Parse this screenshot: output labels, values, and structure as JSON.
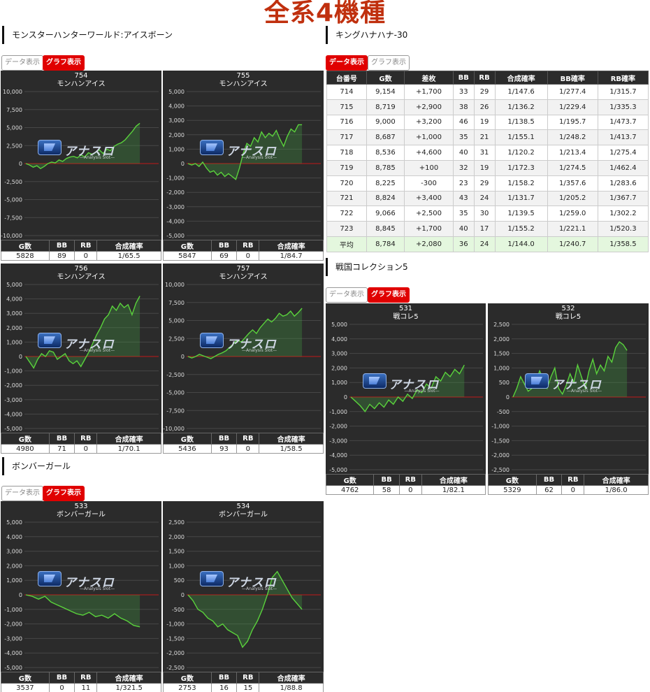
{
  "page_title": "全系4機種",
  "buttons": {
    "data": "データ表示",
    "graph": "グラフ表示"
  },
  "labels": {
    "g": "G数",
    "bb": "BB",
    "rb": "RB",
    "combined": "合成確率"
  },
  "logo": {
    "text": "アナスロ",
    "sub": "—Analysis Slot—"
  },
  "sections": [
    {
      "title": "モンスターハンターワールド:アイスボーン",
      "machines": [
        {
          "number": "754",
          "name": "モンハンアイス",
          "g": "5828",
          "bb": "89",
          "rb": "0",
          "rate": "1/65.5",
          "ticks": [
            "10,000",
            "7,500",
            "5,000",
            "2,500",
            "0",
            "-2,500",
            "-5,000",
            "-7,500",
            "-10,000"
          ],
          "chart_data": {
            "type": "line",
            "ylim": [
              -10000,
              10000
            ],
            "y": [
              0,
              -200,
              -500,
              -300,
              -700,
              -400,
              0,
              200,
              100,
              500,
              300,
              700,
              900,
              1000,
              800,
              1200,
              900,
              1500,
              1300,
              1600,
              1900,
              1400,
              2000,
              1800,
              2400,
              2700,
              2900,
              3300,
              3900,
              4500,
              5200,
              5600
            ]
          }
        },
        {
          "number": "755",
          "name": "モンハンアイス",
          "g": "5847",
          "bb": "69",
          "rb": "0",
          "rate": "1/84.7",
          "ticks": [
            "5,000",
            "4,000",
            "3,000",
            "2,000",
            "1,000",
            "0",
            "-1,000",
            "-2,000",
            "-3,000",
            "-4,000",
            "-5,000"
          ],
          "chart_data": {
            "type": "line",
            "ylim": [
              -5000,
              5000
            ],
            "y": [
              0,
              -100,
              0,
              -200,
              100,
              -300,
              -600,
              -500,
              -800,
              -600,
              -900,
              -700,
              -900,
              -1100,
              -300,
              700,
              1400,
              1200,
              1800,
              1500,
              2200,
              1800,
              2100,
              1900,
              2300,
              1700,
              1200,
              1900,
              2400,
              2200,
              2700,
              2700
            ]
          }
        },
        {
          "number": "756",
          "name": "モンハンアイス",
          "g": "4980",
          "bb": "71",
          "rb": "0",
          "rate": "1/70.1",
          "ticks": [
            "5,000",
            "4,000",
            "3,000",
            "2,000",
            "1,000",
            "0",
            "-1,000",
            "-2,000",
            "-3,000",
            "-4,000",
            "-5,000"
          ],
          "chart_data": {
            "type": "line",
            "ylim": [
              -5000,
              5000
            ],
            "y": [
              0,
              -400,
              -800,
              -200,
              200,
              0,
              400,
              300,
              -200,
              0,
              200,
              -300,
              -500,
              -300,
              -700,
              -200,
              300,
              900,
              1500,
              2000,
              2600,
              2900,
              3500,
              3200,
              3700,
              3400,
              3600,
              2900,
              3700,
              4200
            ]
          }
        },
        {
          "number": "757",
          "name": "モンハンアイス",
          "g": "5436",
          "bb": "93",
          "rb": "0",
          "rate": "1/58.5",
          "ticks": [
            "10,000",
            "7,500",
            "5,000",
            "2,500",
            "0",
            "-2,500",
            "-5,000",
            "-7,500",
            "-10,000"
          ],
          "chart_data": {
            "type": "line",
            "ylim": [
              -10000,
              10000
            ],
            "y": [
              0,
              -200,
              0,
              300,
              100,
              -100,
              -300,
              0,
              300,
              500,
              800,
              1300,
              1800,
              2300,
              2000,
              2600,
              3200,
              3700,
              3200,
              4000,
              4600,
              5200,
              4800,
              5300,
              6000,
              5600,
              5800,
              6300,
              5600,
              6100,
              6700
            ]
          }
        }
      ]
    },
    {
      "title": "キングハナハナ-30",
      "headers": [
        "台番号",
        "G数",
        "差枚",
        "BB",
        "RB",
        "合成確率",
        "BB確率",
        "RB確率"
      ],
      "rows": [
        [
          "714",
          "9,154",
          "+1,700",
          "33",
          "29",
          "1/147.6",
          "1/277.4",
          "1/315.7"
        ],
        [
          "715",
          "8,719",
          "+2,900",
          "38",
          "26",
          "1/136.2",
          "1/229.4",
          "1/335.3"
        ],
        [
          "716",
          "9,000",
          "+3,200",
          "46",
          "19",
          "1/138.5",
          "1/195.7",
          "1/473.7"
        ],
        [
          "717",
          "8,687",
          "+1,000",
          "35",
          "21",
          "1/155.1",
          "1/248.2",
          "1/413.7"
        ],
        [
          "718",
          "8,536",
          "+4,600",
          "40",
          "31",
          "1/120.2",
          "1/213.4",
          "1/275.4"
        ],
        [
          "719",
          "8,785",
          "+100",
          "32",
          "19",
          "1/172.3",
          "1/274.5",
          "1/462.4"
        ],
        [
          "720",
          "8,225",
          "-300",
          "23",
          "29",
          "1/158.2",
          "1/357.6",
          "1/283.6"
        ],
        [
          "721",
          "8,824",
          "+3,400",
          "43",
          "24",
          "1/131.7",
          "1/205.2",
          "1/367.7"
        ],
        [
          "722",
          "9,066",
          "+2,500",
          "35",
          "30",
          "1/139.5",
          "1/259.0",
          "1/302.2"
        ],
        [
          "723",
          "8,845",
          "+1,700",
          "40",
          "17",
          "1/155.2",
          "1/221.1",
          "1/520.3"
        ]
      ],
      "average": [
        "平均",
        "8,784",
        "+2,080",
        "36",
        "24",
        "1/144.0",
        "1/240.7",
        "1/358.5"
      ]
    },
    {
      "title": "戦国コレクション5",
      "machines": [
        {
          "number": "531",
          "name": "戦コレ5",
          "g": "4762",
          "bb": "58",
          "rb": "0",
          "rate": "1/82.1",
          "ticks": [
            "5,000",
            "4,000",
            "3,000",
            "2,000",
            "1,000",
            "0",
            "-1,000",
            "-2,000",
            "-3,000",
            "-4,000",
            "-5,000"
          ],
          "chart_data": {
            "type": "line",
            "ylim": [
              -5000,
              5000
            ],
            "y": [
              0,
              -300,
              -600,
              -1000,
              -500,
              -800,
              -400,
              -700,
              -200,
              -500,
              0,
              -300,
              200,
              -100,
              500,
              300,
              900,
              600,
              1400,
              1100,
              1700,
              1400,
              1900,
              1600,
              2200
            ]
          }
        },
        {
          "number": "532",
          "name": "戦コレ5",
          "g": "5329",
          "bb": "62",
          "rb": "0",
          "rate": "1/86.0",
          "ticks": [
            "2,500",
            "2,000",
            "1,500",
            "1,000",
            "500",
            "0",
            "-500",
            "-1,000",
            "-1,500",
            "-2,000",
            "-2,500"
          ],
          "chart_data": {
            "type": "line",
            "ylim": [
              -2500,
              2500
            ],
            "y": [
              0,
              300,
              700,
              450,
              200,
              300,
              500,
              900,
              600,
              300,
              700,
              1000,
              300,
              100,
              400,
              800,
              500,
              1100,
              700,
              300,
              900,
              1300,
              800,
              1100,
              900,
              1400,
              1200,
              1700,
              1900,
              1800,
              1600
            ]
          }
        }
      ]
    },
    {
      "title": "ボンバーガール",
      "machines": [
        {
          "number": "533",
          "name": "ボンバーガール",
          "g": "3537",
          "bb": "0",
          "rb": "11",
          "rate": "1/321.5",
          "ticks": [
            "5,000",
            "4,000",
            "3,000",
            "2,000",
            "1,000",
            "0",
            "-1,000",
            "-2,000",
            "-3,000",
            "-4,000",
            "-5,000"
          ],
          "chart_data": {
            "type": "line",
            "ylim": [
              -5000,
              5000
            ],
            "y": [
              0,
              -100,
              -300,
              -100,
              -500,
              -700,
              -900,
              -1100,
              -1300,
              -1400,
              -1200,
              -1500,
              -1400,
              -1600,
              -1300,
              -1600,
              -1800,
              -2100,
              -2200
            ]
          }
        },
        {
          "number": "534",
          "name": "ボンバーガール",
          "g": "2753",
          "bb": "16",
          "rb": "15",
          "rate": "1/88.8",
          "ticks": [
            "2,500",
            "2,000",
            "1,500",
            "1,000",
            "500",
            "0",
            "-500",
            "-1,000",
            "-1,500",
            "-2,000",
            "-2,500"
          ],
          "chart_data": {
            "type": "line",
            "ylim": [
              -2500,
              2500
            ],
            "y": [
              0,
              -200,
              -500,
              -600,
              -800,
              -900,
              -1100,
              -1000,
              -1200,
              -1300,
              -1400,
              -1800,
              -1600,
              -1200,
              -900,
              -500,
              0,
              600,
              800,
              500,
              200,
              -100,
              -300,
              -500
            ]
          }
        }
      ]
    }
  ]
}
